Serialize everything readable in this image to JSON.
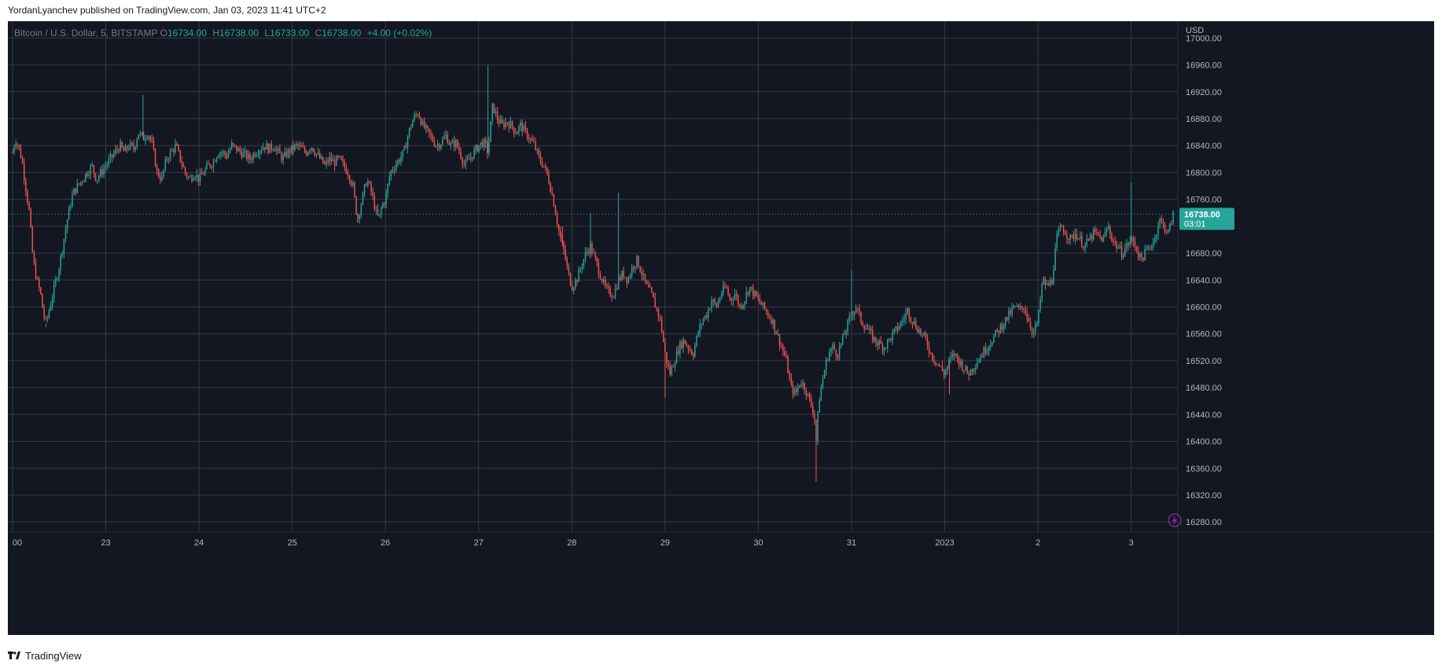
{
  "header": {
    "publisher": "YordanLyanchev published on TradingView.com, Jan 03, 2023 11:41 UTC+2"
  },
  "legend": {
    "symbol": "Bitcoin / U.S. Dollar, 5, BITSTAMP",
    "open_label": "O",
    "open": "16734.00",
    "high_label": "H",
    "high": "16738.00",
    "low_label": "L",
    "low": "16733.00",
    "close_label": "C",
    "close": "16738.00",
    "change": "+4.00 (+0.02%)"
  },
  "price_tag": {
    "price": "16738.00",
    "countdown": "03:01"
  },
  "footer": {
    "brand": "TradingView"
  },
  "colors": {
    "background": "#131722",
    "grid": "#363a45",
    "up": "#26a69a",
    "down": "#ef5350",
    "axis_text": "#b2b5be",
    "tag": "#26a69a"
  },
  "icons": {
    "lightning": "lightning-icon",
    "logo": "tradingview-logo-icon"
  },
  "chart_data": {
    "type": "candlestick",
    "symbol": "Bitcoin / U.S. Dollar",
    "interval": "5",
    "exchange": "BITSTAMP",
    "currency_label": "USD",
    "ylim": [
      16265,
      17025
    ],
    "y_ticks": [
      "17000.00",
      "16960.00",
      "16920.00",
      "16880.00",
      "16840.00",
      "16800.00",
      "16760.00",
      "16720.00",
      "16680.00",
      "16640.00",
      "16600.00",
      "16560.00",
      "16520.00",
      "16480.00",
      "16440.00",
      "16400.00",
      "16360.00",
      "16320.00",
      "16280.00"
    ],
    "x_ticks": [
      {
        "label": "00",
        "x": 0
      },
      {
        "label": "23",
        "x": 1
      },
      {
        "label": "24",
        "x": 2
      },
      {
        "label": "25",
        "x": 3
      },
      {
        "label": "26",
        "x": 4
      },
      {
        "label": "27",
        "x": 5
      },
      {
        "label": "28",
        "x": 6
      },
      {
        "label": "29",
        "x": 7
      },
      {
        "label": "30",
        "x": 8
      },
      {
        "label": "31",
        "x": 9
      },
      {
        "label": "2023",
        "x": 10
      },
      {
        "label": "2",
        "x": 11
      },
      {
        "label": "3",
        "x": 12
      }
    ],
    "x_range": [
      -0.05,
      12.5
    ],
    "last_price": 16738,
    "price_path": [
      [
        0.0,
        16830
      ],
      [
        0.03,
        16850
      ],
      [
        0.06,
        16840
      ],
      [
        0.1,
        16820
      ],
      [
        0.14,
        16780
      ],
      [
        0.18,
        16740
      ],
      [
        0.22,
        16670
      ],
      [
        0.26,
        16640
      ],
      [
        0.3,
        16620
      ],
      [
        0.33,
        16590
      ],
      [
        0.36,
        16575
      ],
      [
        0.4,
        16600
      ],
      [
        0.45,
        16630
      ],
      [
        0.5,
        16660
      ],
      [
        0.55,
        16700
      ],
      [
        0.6,
        16740
      ],
      [
        0.65,
        16770
      ],
      [
        0.7,
        16780
      ],
      [
        0.75,
        16790
      ],
      [
        0.8,
        16800
      ],
      [
        0.85,
        16810
      ],
      [
        0.9,
        16790
      ],
      [
        0.95,
        16800
      ],
      [
        1.0,
        16810
      ],
      [
        1.05,
        16820
      ],
      [
        1.1,
        16830
      ],
      [
        1.15,
        16840
      ],
      [
        1.2,
        16830
      ],
      [
        1.25,
        16840
      ],
      [
        1.3,
        16835
      ],
      [
        1.35,
        16860
      ],
      [
        1.4,
        16850
      ],
      [
        1.45,
        16860
      ],
      [
        1.5,
        16840
      ],
      [
        1.55,
        16800
      ],
      [
        1.6,
        16790
      ],
      [
        1.65,
        16820
      ],
      [
        1.7,
        16830
      ],
      [
        1.75,
        16840
      ],
      [
        1.8,
        16820
      ],
      [
        1.85,
        16800
      ],
      [
        1.9,
        16790
      ],
      [
        1.95,
        16800
      ],
      [
        2.0,
        16790
      ],
      [
        2.05,
        16800
      ],
      [
        2.1,
        16810
      ],
      [
        2.15,
        16815
      ],
      [
        2.2,
        16830
      ],
      [
        2.25,
        16830
      ],
      [
        2.3,
        16825
      ],
      [
        2.35,
        16840
      ],
      [
        2.4,
        16835
      ],
      [
        2.45,
        16830
      ],
      [
        2.5,
        16825
      ],
      [
        2.55,
        16820
      ],
      [
        2.6,
        16830
      ],
      [
        2.65,
        16835
      ],
      [
        2.7,
        16840
      ],
      [
        2.75,
        16835
      ],
      [
        2.8,
        16840
      ],
      [
        2.85,
        16830
      ],
      [
        2.9,
        16820
      ],
      [
        2.95,
        16830
      ],
      [
        3.0,
        16835
      ],
      [
        3.05,
        16840
      ],
      [
        3.1,
        16835
      ],
      [
        3.15,
        16830
      ],
      [
        3.2,
        16840
      ],
      [
        3.25,
        16830
      ],
      [
        3.3,
        16820
      ],
      [
        3.35,
        16810
      ],
      [
        3.4,
        16820
      ],
      [
        3.45,
        16815
      ],
      [
        3.5,
        16820
      ],
      [
        3.55,
        16810
      ],
      [
        3.6,
        16800
      ],
      [
        3.65,
        16780
      ],
      [
        3.7,
        16730
      ],
      [
        3.75,
        16760
      ],
      [
        3.8,
        16790
      ],
      [
        3.85,
        16770
      ],
      [
        3.9,
        16740
      ],
      [
        3.93,
        16730
      ],
      [
        3.96,
        16750
      ],
      [
        4.0,
        16760
      ],
      [
        4.05,
        16800
      ],
      [
        4.1,
        16810
      ],
      [
        4.15,
        16820
      ],
      [
        4.2,
        16830
      ],
      [
        4.25,
        16860
      ],
      [
        4.3,
        16880
      ],
      [
        4.35,
        16890
      ],
      [
        4.4,
        16870
      ],
      [
        4.45,
        16860
      ],
      [
        4.5,
        16850
      ],
      [
        4.55,
        16840
      ],
      [
        4.6,
        16845
      ],
      [
        4.65,
        16855
      ],
      [
        4.7,
        16840
      ],
      [
        4.75,
        16845
      ],
      [
        4.8,
        16830
      ],
      [
        4.85,
        16810
      ],
      [
        4.9,
        16820
      ],
      [
        4.95,
        16830
      ],
      [
        5.0,
        16840
      ],
      [
        5.05,
        16845
      ],
      [
        5.1,
        16830
      ],
      [
        5.15,
        16900
      ],
      [
        5.2,
        16880
      ],
      [
        5.25,
        16870
      ],
      [
        5.3,
        16875
      ],
      [
        5.35,
        16870
      ],
      [
        5.4,
        16860
      ],
      [
        5.45,
        16870
      ],
      [
        5.5,
        16860
      ],
      [
        5.55,
        16850
      ],
      [
        5.6,
        16840
      ],
      [
        5.65,
        16820
      ],
      [
        5.7,
        16810
      ],
      [
        5.75,
        16790
      ],
      [
        5.8,
        16760
      ],
      [
        5.85,
        16720
      ],
      [
        5.88,
        16700
      ],
      [
        5.92,
        16680
      ],
      [
        5.96,
        16650
      ],
      [
        6.0,
        16630
      ],
      [
        6.05,
        16640
      ],
      [
        6.1,
        16660
      ],
      [
        6.15,
        16680
      ],
      [
        6.2,
        16690
      ],
      [
        6.25,
        16670
      ],
      [
        6.3,
        16650
      ],
      [
        6.35,
        16630
      ],
      [
        6.4,
        16620
      ],
      [
        6.45,
        16620
      ],
      [
        6.5,
        16640
      ],
      [
        6.55,
        16650
      ],
      [
        6.6,
        16640
      ],
      [
        6.65,
        16660
      ],
      [
        6.7,
        16670
      ],
      [
        6.75,
        16650
      ],
      [
        6.8,
        16630
      ],
      [
        6.85,
        16620
      ],
      [
        6.9,
        16600
      ],
      [
        6.95,
        16580
      ],
      [
        7.0,
        16530
      ],
      [
        7.05,
        16500
      ],
      [
        7.1,
        16520
      ],
      [
        7.15,
        16540
      ],
      [
        7.2,
        16550
      ],
      [
        7.25,
        16540
      ],
      [
        7.3,
        16530
      ],
      [
        7.35,
        16560
      ],
      [
        7.4,
        16580
      ],
      [
        7.45,
        16590
      ],
      [
        7.5,
        16610
      ],
      [
        7.55,
        16600
      ],
      [
        7.6,
        16620
      ],
      [
        7.65,
        16630
      ],
      [
        7.7,
        16610
      ],
      [
        7.75,
        16620
      ],
      [
        7.8,
        16600
      ],
      [
        7.85,
        16610
      ],
      [
        7.9,
        16630
      ],
      [
        7.95,
        16620
      ],
      [
        8.0,
        16610
      ],
      [
        8.05,
        16600
      ],
      [
        8.1,
        16590
      ],
      [
        8.15,
        16580
      ],
      [
        8.2,
        16560
      ],
      [
        8.25,
        16540
      ],
      [
        8.3,
        16520
      ],
      [
        8.35,
        16480
      ],
      [
        8.4,
        16470
      ],
      [
        8.45,
        16490
      ],
      [
        8.5,
        16480
      ],
      [
        8.55,
        16460
      ],
      [
        8.6,
        16440
      ],
      [
        8.62,
        16400
      ],
      [
        8.65,
        16460
      ],
      [
        8.7,
        16500
      ],
      [
        8.75,
        16530
      ],
      [
        8.8,
        16540
      ],
      [
        8.85,
        16530
      ],
      [
        8.9,
        16550
      ],
      [
        8.95,
        16570
      ],
      [
        9.0,
        16590
      ],
      [
        9.05,
        16600
      ],
      [
        9.1,
        16580
      ],
      [
        9.15,
        16570
      ],
      [
        9.2,
        16560
      ],
      [
        9.25,
        16550
      ],
      [
        9.3,
        16545
      ],
      [
        9.35,
        16540
      ],
      [
        9.4,
        16550
      ],
      [
        9.45,
        16560
      ],
      [
        9.5,
        16570
      ],
      [
        9.55,
        16580
      ],
      [
        9.6,
        16595
      ],
      [
        9.65,
        16580
      ],
      [
        9.7,
        16570
      ],
      [
        9.75,
        16560
      ],
      [
        9.8,
        16550
      ],
      [
        9.85,
        16530
      ],
      [
        9.9,
        16520
      ],
      [
        9.95,
        16510
      ],
      [
        10.0,
        16500
      ],
      [
        10.05,
        16520
      ],
      [
        10.1,
        16530
      ],
      [
        10.15,
        16520
      ],
      [
        10.2,
        16510
      ],
      [
        10.25,
        16500
      ],
      [
        10.3,
        16510
      ],
      [
        10.35,
        16520
      ],
      [
        10.4,
        16530
      ],
      [
        10.45,
        16540
      ],
      [
        10.5,
        16550
      ],
      [
        10.55,
        16560
      ],
      [
        10.6,
        16570
      ],
      [
        10.65,
        16580
      ],
      [
        10.7,
        16590
      ],
      [
        10.75,
        16600
      ],
      [
        10.8,
        16595
      ],
      [
        10.85,
        16600
      ],
      [
        10.9,
        16580
      ],
      [
        10.95,
        16560
      ],
      [
        11.0,
        16580
      ],
      [
        11.05,
        16640
      ],
      [
        11.1,
        16630
      ],
      [
        11.15,
        16640
      ],
      [
        11.2,
        16700
      ],
      [
        11.25,
        16720
      ],
      [
        11.3,
        16710
      ],
      [
        11.35,
        16700
      ],
      [
        11.4,
        16710
      ],
      [
        11.45,
        16700
      ],
      [
        11.5,
        16690
      ],
      [
        11.55,
        16700
      ],
      [
        11.6,
        16710
      ],
      [
        11.65,
        16705
      ],
      [
        11.7,
        16700
      ],
      [
        11.75,
        16720
      ],
      [
        11.8,
        16700
      ],
      [
        11.85,
        16690
      ],
      [
        11.9,
        16680
      ],
      [
        11.95,
        16690
      ],
      [
        12.0,
        16700
      ],
      [
        12.05,
        16690
      ],
      [
        12.1,
        16670
      ],
      [
        12.15,
        16680
      ],
      [
        12.2,
        16690
      ],
      [
        12.25,
        16700
      ],
      [
        12.3,
        16730
      ],
      [
        12.35,
        16720
      ],
      [
        12.4,
        16710
      ],
      [
        12.45,
        16738
      ]
    ],
    "spikes": [
      {
        "x": 0.36,
        "low": 16570
      },
      {
        "x": 1.4,
        "high": 16915
      },
      {
        "x": 3.7,
        "low": 16725
      },
      {
        "x": 5.1,
        "high": 16960
      },
      {
        "x": 5.9,
        "low": 16720
      },
      {
        "x": 6.2,
        "high": 16740
      },
      {
        "x": 6.5,
        "high": 16770
      },
      {
        "x": 7.0,
        "low": 16465
      },
      {
        "x": 8.62,
        "low": 16340
      },
      {
        "x": 9.0,
        "high": 16655
      },
      {
        "x": 10.05,
        "low": 16470
      },
      {
        "x": 12.0,
        "high": 16785
      }
    ]
  }
}
